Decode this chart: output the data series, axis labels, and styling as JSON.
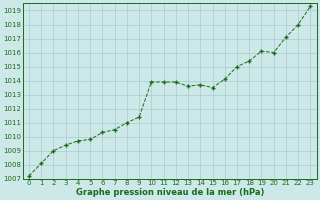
{
  "x": [
    0,
    1,
    2,
    3,
    4,
    5,
    6,
    7,
    8,
    9,
    10,
    11,
    12,
    13,
    14,
    15,
    16,
    17,
    18,
    19,
    20,
    21,
    22,
    23
  ],
  "y": [
    1007.2,
    1008.1,
    1009.0,
    1009.4,
    1009.7,
    1009.8,
    1010.3,
    1010.5,
    1011.0,
    1011.4,
    1013.9,
    1013.9,
    1013.9,
    1013.6,
    1013.7,
    1013.5,
    1014.1,
    1015.0,
    1015.4,
    1016.1,
    1016.0,
    1017.1,
    1018.0,
    1019.3
  ],
  "line_color": "#1a6b1a",
  "marker_color": "#1a6b1a",
  "bg_color": "#cce8e8",
  "grid_color": "#aacccc",
  "xlabel": "Graphe pression niveau de la mer (hPa)",
  "xlabel_color": "#1a6b1a",
  "tick_color": "#1a6b1a",
  "ylim": [
    1007,
    1019.5
  ],
  "xlim": [
    -0.5,
    23.5
  ],
  "yticks": [
    1007,
    1008,
    1009,
    1010,
    1011,
    1012,
    1013,
    1014,
    1015,
    1016,
    1017,
    1018,
    1019
  ],
  "xticks": [
    0,
    1,
    2,
    3,
    4,
    5,
    6,
    7,
    8,
    9,
    10,
    11,
    12,
    13,
    14,
    15,
    16,
    17,
    18,
    19,
    20,
    21,
    22,
    23
  ],
  "tick_fontsize": 5.0,
  "xlabel_fontsize": 6.0
}
